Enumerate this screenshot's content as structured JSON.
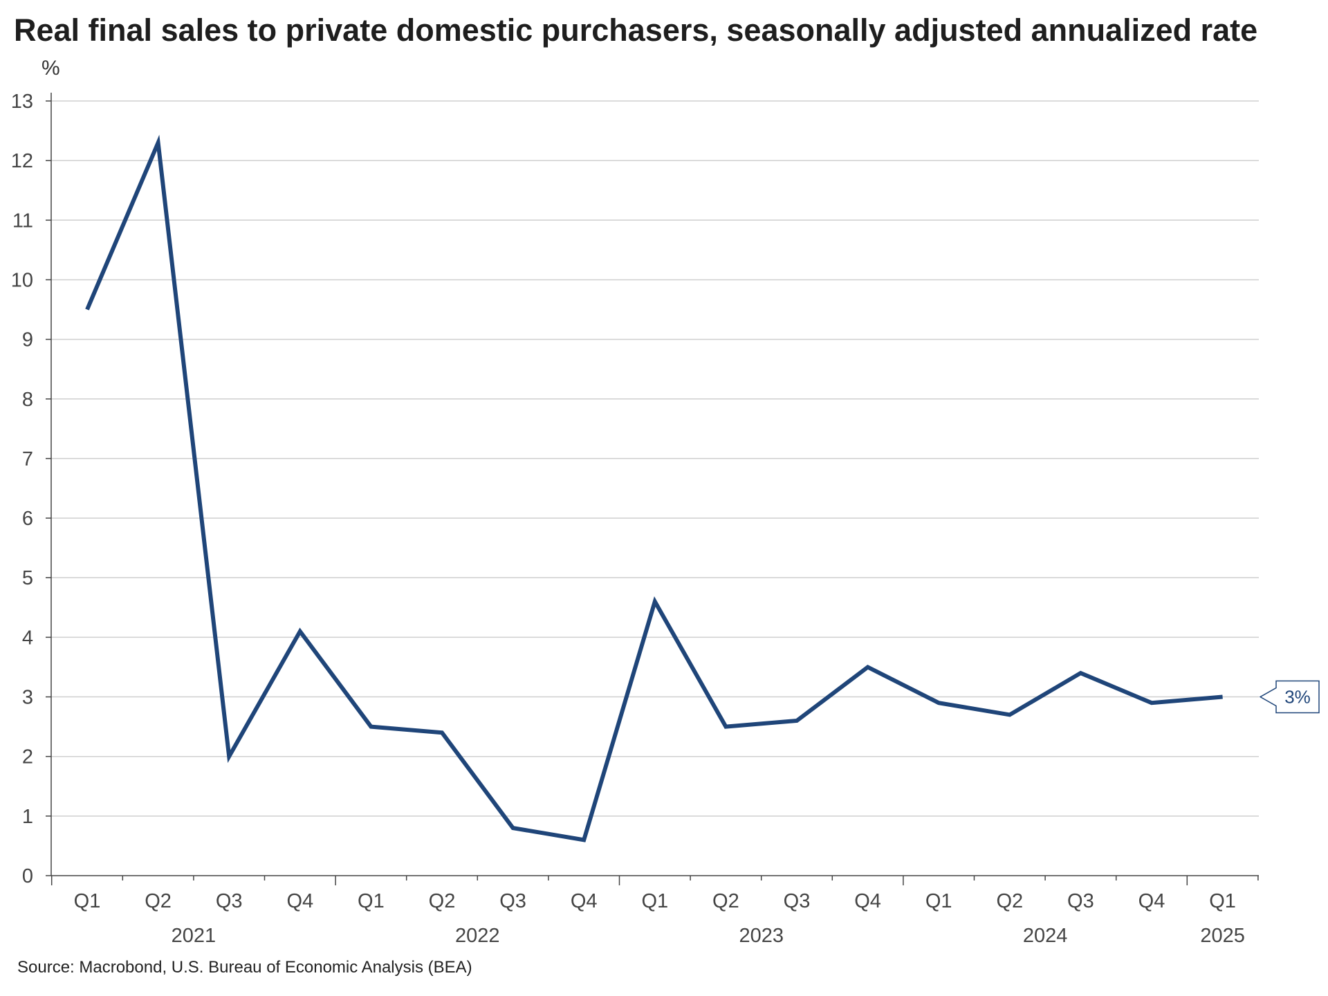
{
  "title": "Real final sales to private domestic purchasers, seasonally adjusted annualized rate",
  "source": "Source: Macrobond, U.S. Bureau of Economic Analysis (BEA)",
  "colors": {
    "line": "#1f4579",
    "grid": "#cfcfcf",
    "axis": "#444444"
  },
  "chart_data": {
    "type": "line",
    "ylabel": "%",
    "ylim": [
      0,
      13
    ],
    "yticks": [
      0,
      1,
      2,
      3,
      4,
      5,
      6,
      7,
      8,
      9,
      10,
      11,
      12,
      13
    ],
    "grid": true,
    "categories": [
      "Q1",
      "Q2",
      "Q3",
      "Q4",
      "Q1",
      "Q2",
      "Q3",
      "Q4",
      "Q1",
      "Q2",
      "Q3",
      "Q4",
      "Q1",
      "Q2",
      "Q3",
      "Q4",
      "Q1"
    ],
    "year_groups": [
      {
        "label": "2021",
        "start": 0,
        "end": 3
      },
      {
        "label": "2022",
        "start": 4,
        "end": 7
      },
      {
        "label": "2023",
        "start": 8,
        "end": 11
      },
      {
        "label": "2024",
        "start": 12,
        "end": 15
      },
      {
        "label": "2025",
        "start": 16,
        "end": 16
      }
    ],
    "series": [
      {
        "values": [
          9.5,
          12.3,
          2.0,
          4.1,
          2.5,
          2.4,
          0.8,
          0.6,
          4.6,
          2.5,
          2.6,
          3.5,
          2.9,
          2.7,
          3.4,
          2.9,
          3.0
        ]
      }
    ],
    "last_value_label": "3%"
  }
}
